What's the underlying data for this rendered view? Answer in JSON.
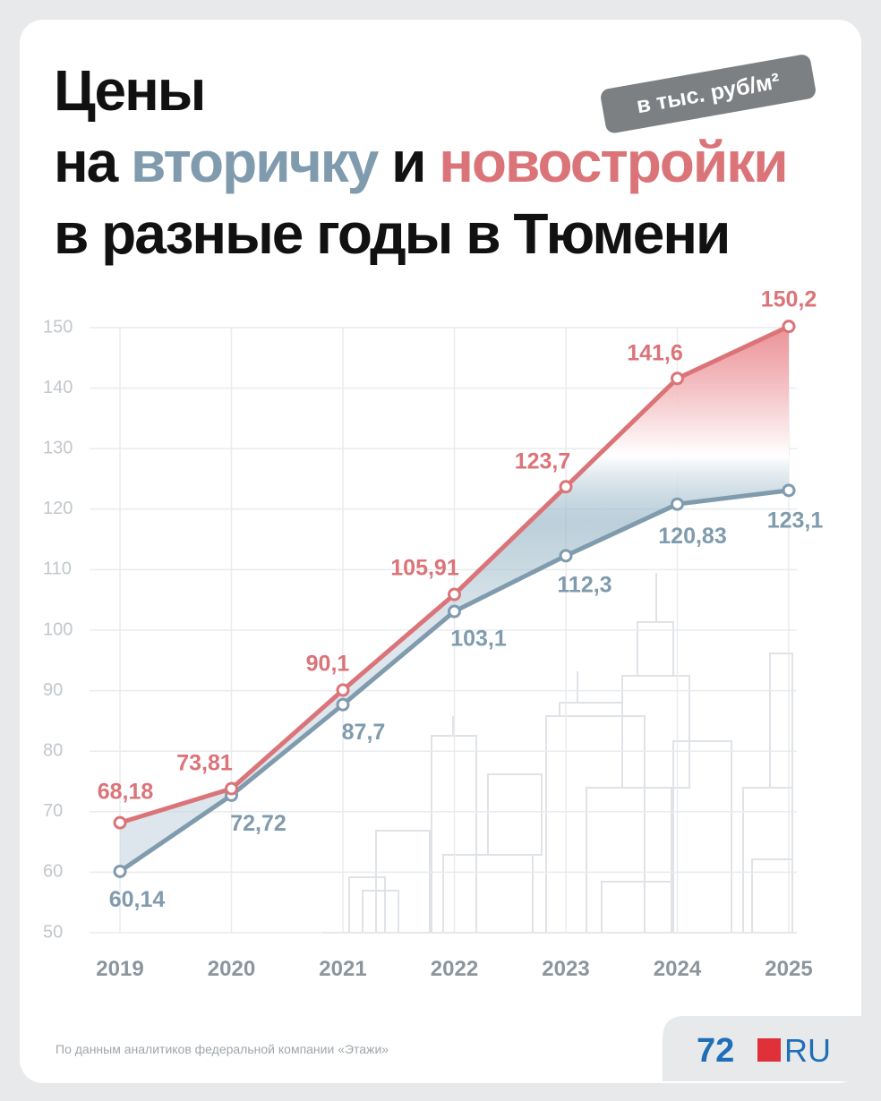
{
  "chart_data": {
    "type": "line",
    "title": {
      "line1": "Цены",
      "line2_start": "на",
      "line2_mid": "и",
      "line3": "в разные годы в Тюмени"
    },
    "unit": "в тыс. руб/м²",
    "categories": [
      "2019",
      "2020",
      "2021",
      "2022",
      "2023",
      "2024",
      "2025"
    ],
    "series": [
      {
        "name": "вторичку",
        "color": "#7f9bad",
        "values": [
          60.14,
          72.72,
          87.7,
          103.1,
          112.3,
          120.83,
          123.1
        ],
        "value_labels": [
          "60,14",
          "72,72",
          "87,7",
          "103,1",
          "112,3",
          "120,83",
          "123,1"
        ]
      },
      {
        "name": "новостройки",
        "color": "#db7479",
        "values": [
          68.18,
          73.81,
          90.1,
          105.91,
          123.7,
          141.6,
          150.2
        ],
        "value_labels": [
          "68,18",
          "73,81",
          "90,1",
          "105,91",
          "123,7",
          "141,6",
          "150,2"
        ]
      }
    ],
    "ylim": [
      50,
      150
    ],
    "yticks": [
      50,
      60,
      70,
      80,
      90,
      100,
      110,
      120,
      130,
      140,
      150
    ],
    "grid": true,
    "source": "По данным аналитиков федеральной компании «Этажи»"
  },
  "logo": {
    "left": "72",
    "right": "RU"
  }
}
